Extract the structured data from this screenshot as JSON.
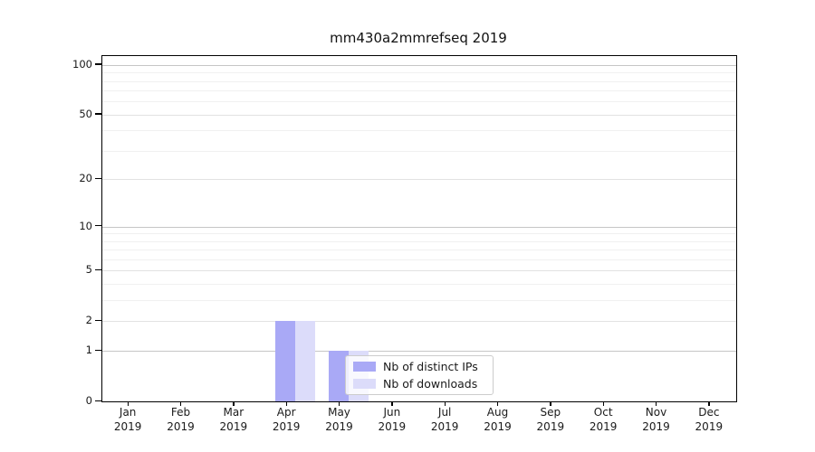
{
  "chart_data": {
    "type": "bar",
    "title": "mm430a2mmrefseq 2019",
    "categories": [
      "Jan",
      "Feb",
      "Mar",
      "Apr",
      "May",
      "Jun",
      "Jul",
      "Aug",
      "Sep",
      "Oct",
      "Nov",
      "Dec"
    ],
    "category_year": "2019",
    "series": [
      {
        "name": "Nb of distinct IPs",
        "color": "#a9a9f6",
        "values": [
          0,
          0,
          0,
          2,
          1,
          0,
          0,
          0,
          0,
          0,
          0,
          0
        ]
      },
      {
        "name": "Nb of downloads",
        "color": "#dcdcfa",
        "values": [
          0,
          0,
          0,
          2,
          1,
          0,
          0,
          0,
          0,
          0,
          0,
          0
        ]
      }
    ],
    "yscale": "log1p",
    "ylim": [
      0,
      113
    ],
    "yticks": [
      0,
      1,
      2,
      5,
      10,
      20,
      50,
      100
    ],
    "yticks_decade": [
      1,
      10,
      100
    ],
    "yticks_minor": [
      3,
      4,
      6,
      7,
      8,
      9,
      30,
      40,
      60,
      70,
      80,
      90
    ],
    "grid": "horizontal",
    "legend_position": "lower-center"
  }
}
